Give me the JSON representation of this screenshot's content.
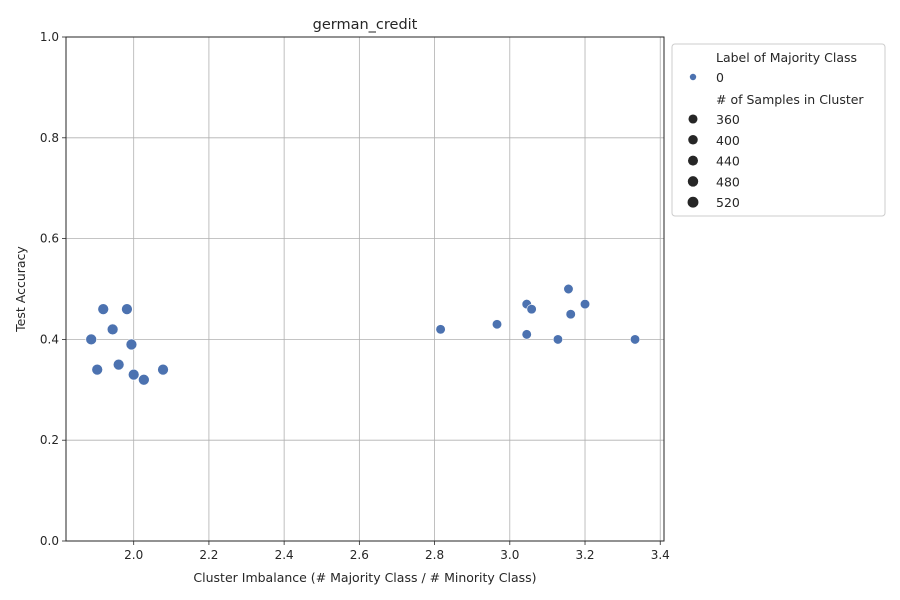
{
  "chart_data": {
    "type": "scatter",
    "title": "german_credit",
    "xlabel": "Cluster Imbalance (# Majority Class / # Minority Class)",
    "ylabel": "Test Accuracy",
    "xlim": [
      1.82,
      3.41
    ],
    "ylim": [
      0.0,
      1.0
    ],
    "xticks": [
      2.0,
      2.2,
      2.4,
      2.6,
      2.8,
      3.0,
      3.2,
      3.4
    ],
    "xtick_labels": [
      "2.0",
      "2.2",
      "2.4",
      "2.6",
      "2.8",
      "3.0",
      "3.2",
      "3.4"
    ],
    "yticks": [
      0.0,
      0.2,
      0.4,
      0.6,
      0.8,
      1.0
    ],
    "ytick_labels": [
      "0.0",
      "0.2",
      "0.4",
      "0.6",
      "0.8",
      "1.0"
    ],
    "grid": true,
    "marker_color": "#4c72b0",
    "series": [
      {
        "name": "0",
        "points": [
          {
            "x": 1.887,
            "y": 0.4,
            "size": 520
          },
          {
            "x": 1.903,
            "y": 0.34,
            "size": 520
          },
          {
            "x": 1.919,
            "y": 0.46,
            "size": 520
          },
          {
            "x": 1.944,
            "y": 0.42,
            "size": 520
          },
          {
            "x": 1.96,
            "y": 0.35,
            "size": 520
          },
          {
            "x": 1.982,
            "y": 0.46,
            "size": 520
          },
          {
            "x": 1.994,
            "y": 0.39,
            "size": 520
          },
          {
            "x": 2.0,
            "y": 0.33,
            "size": 520
          },
          {
            "x": 2.027,
            "y": 0.32,
            "size": 520
          },
          {
            "x": 2.078,
            "y": 0.34,
            "size": 520
          },
          {
            "x": 2.816,
            "y": 0.42,
            "size": 400
          },
          {
            "x": 2.966,
            "y": 0.43,
            "size": 400
          },
          {
            "x": 3.045,
            "y": 0.47,
            "size": 400
          },
          {
            "x": 3.045,
            "y": 0.41,
            "size": 400
          },
          {
            "x": 3.058,
            "y": 0.46,
            "size": 400
          },
          {
            "x": 3.128,
            "y": 0.4,
            "size": 400
          },
          {
            "x": 3.156,
            "y": 0.5,
            "size": 400
          },
          {
            "x": 3.162,
            "y": 0.45,
            "size": 400
          },
          {
            "x": 3.2,
            "y": 0.47,
            "size": 400
          },
          {
            "x": 3.333,
            "y": 0.4,
            "size": 400
          }
        ]
      }
    ],
    "legend": {
      "placement": "outside upper right",
      "hue_title": "Label of Majority Class",
      "hue_entries": [
        {
          "label": "0"
        }
      ],
      "size_title": "# of Samples in Cluster",
      "size_entries": [
        {
          "label": "360",
          "size": 360
        },
        {
          "label": "400",
          "size": 400
        },
        {
          "label": "440",
          "size": 440
        },
        {
          "label": "480",
          "size": 480
        },
        {
          "label": "520",
          "size": 520
        }
      ]
    }
  }
}
